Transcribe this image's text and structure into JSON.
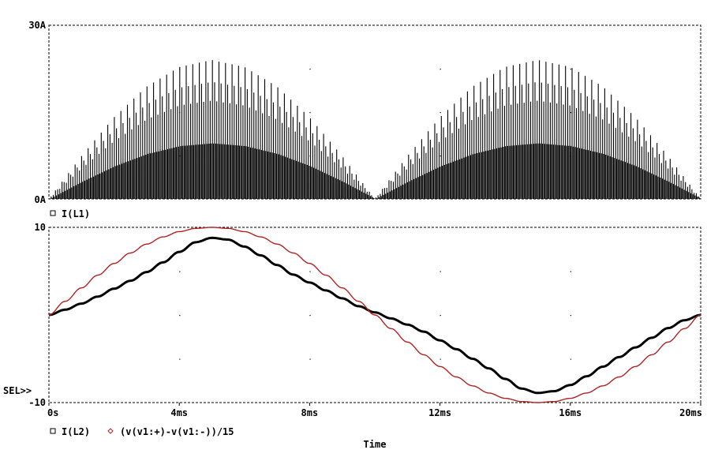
{
  "chart_data": [
    {
      "type": "line",
      "panel": "top",
      "title": "",
      "xlabel": "",
      "ylabel": "",
      "ylim": [
        0,
        30
      ],
      "xlim": [
        0,
        20
      ],
      "x_unit": "ms",
      "grid": "dotted",
      "yticks": [
        {
          "value": 0,
          "label": "0A"
        },
        {
          "value": 30,
          "label": "30A"
        }
      ],
      "series": [
        {
          "name": "I(L1)",
          "marker": "square",
          "color": "#000000",
          "description": "high-frequency switching current, envelope |sin| peaking at 5ms and 15ms",
          "x": [
            0,
            1,
            2,
            3,
            4,
            5,
            6,
            7,
            8,
            9,
            10,
            11,
            12,
            13,
            14,
            15,
            16,
            17,
            18,
            19,
            20
          ],
          "envelope_max": [
            0,
            7.4,
            14.1,
            19.4,
            22.8,
            24,
            22.8,
            19.4,
            14.1,
            7.4,
            0,
            7.4,
            14.1,
            19.4,
            22.8,
            24,
            22.8,
            19.4,
            14.1,
            7.4,
            0
          ]
        }
      ]
    },
    {
      "type": "line",
      "panel": "bottom",
      "title": "",
      "xlabel": "Time",
      "ylabel": "",
      "ylim": [
        -10,
        10
      ],
      "xlim": [
        0,
        20
      ],
      "x_unit": "ms",
      "grid": "dotted",
      "selected_marker": "SEL>>",
      "yticks": [
        {
          "value": -10,
          "label": "-10"
        },
        {
          "value": 10,
          "label": "10"
        }
      ],
      "xticks": [
        {
          "value": 0,
          "label": "0s"
        },
        {
          "value": 4,
          "label": "4ms"
        },
        {
          "value": 8,
          "label": "8ms"
        },
        {
          "value": 12,
          "label": "12ms"
        },
        {
          "value": 16,
          "label": "16ms"
        },
        {
          "value": 20,
          "label": "20ms"
        }
      ],
      "series": [
        {
          "name": "I(L2)",
          "marker": "square",
          "color": "#000000",
          "x": [
            0,
            0.5,
            1,
            1.5,
            2,
            2.5,
            3,
            3.5,
            4,
            4.5,
            5,
            5.5,
            6,
            6.5,
            7,
            7.5,
            8,
            8.5,
            9,
            9.5,
            10,
            10.5,
            11,
            11.5,
            12,
            12.5,
            13,
            13.5,
            14,
            14.5,
            15,
            15.5,
            16,
            16.5,
            17,
            17.5,
            18,
            18.5,
            19,
            19.5,
            20
          ],
          "values": [
            0,
            0.6,
            1.3,
            2.1,
            3.0,
            3.9,
            4.9,
            6.0,
            7.2,
            8.3,
            8.8,
            8.6,
            7.8,
            6.8,
            5.7,
            4.6,
            3.7,
            2.8,
            1.9,
            1.0,
            0.3,
            -0.4,
            -1.1,
            -1.9,
            -2.9,
            -3.9,
            -5.0,
            -6.1,
            -7.3,
            -8.4,
            -8.9,
            -8.7,
            -8.0,
            -7.0,
            -5.9,
            -4.8,
            -3.7,
            -2.6,
            -1.5,
            -0.6,
            0
          ]
        },
        {
          "name": "(v(v1:+)-v(v1:-))/15",
          "marker": "diamond",
          "color": "#b22222",
          "x": [
            0,
            0.5,
            1,
            1.5,
            2,
            2.5,
            3,
            3.5,
            4,
            4.5,
            5,
            5.5,
            6,
            6.5,
            7,
            7.5,
            8,
            8.5,
            9,
            9.5,
            10,
            10.5,
            11,
            11.5,
            12,
            12.5,
            13,
            13.5,
            14,
            14.5,
            15,
            15.5,
            16,
            16.5,
            17,
            17.5,
            18,
            18.5,
            19,
            19.5,
            20
          ],
          "values": [
            0,
            1.56,
            3.09,
            4.54,
            5.88,
            7.07,
            8.09,
            8.91,
            9.51,
            9.88,
            10,
            9.88,
            9.51,
            8.91,
            8.09,
            7.07,
            5.88,
            4.54,
            3.09,
            1.56,
            0,
            -1.56,
            -3.09,
            -4.54,
            -5.88,
            -7.07,
            -8.09,
            -8.91,
            -9.51,
            -9.88,
            -10,
            -9.88,
            -9.51,
            -8.91,
            -8.09,
            -7.07,
            -5.88,
            -4.54,
            -3.09,
            -1.56,
            0
          ]
        }
      ]
    }
  ]
}
